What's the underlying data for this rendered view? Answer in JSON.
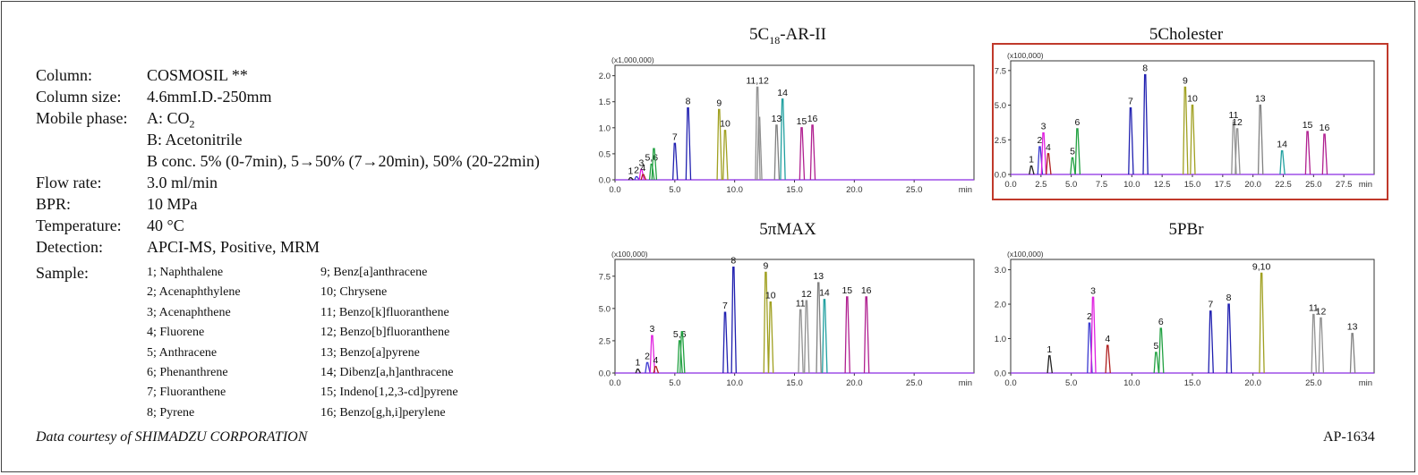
{
  "conditions": [
    {
      "label": "Column:",
      "value": "COSMOSIL  **"
    },
    {
      "label": "Column size:",
      "value": "4.6mmI.D.-250mm"
    },
    {
      "label": "Mobile phase:",
      "value": "A: CO",
      "sub": "2"
    },
    {
      "label": "",
      "value": "B: Acetonitrile"
    },
    {
      "label": "",
      "value": "B conc. 5% (0-7min), 5→50% (7→20min), 50% (20-22min)"
    },
    {
      "label": "Flow rate:",
      "value": "3.0 ml/min"
    },
    {
      "label": "BPR:",
      "value": "10 MPa"
    },
    {
      "label": "Temperature:",
      "value": "40 °C"
    },
    {
      "label": "Detection:",
      "value": "APCI-MS, Positive, MRM"
    }
  ],
  "sample_label": "Sample:",
  "samples": [
    "1; Naphthalene",
    "2; Acenaphthylene",
    "3; Acenaphthene",
    "4; Fluorene",
    "5; Anthracene",
    "6; Phenanthrene",
    "7; Fluoranthene",
    "8; Pyrene",
    "9; Benz[a]anthracene",
    "10; Chrysene",
    "11; Benzo[k]fluoranthene",
    "12; Benzo[b]fluoranthene",
    "13; Benzo[a]pyrene",
    "14; Dibenz[a,h]anthracene",
    "15; Indeno[1,2,3-cd]pyrene",
    "16; Benzo[g,h,i]perylene"
  ],
  "credit": "Data courtesy of SHIMADZU CORPORATION",
  "code": "AP-1634",
  "series_colors": [
    "#222222",
    "#3a3ad0",
    "#e020e0",
    "#b02020",
    "#20a040",
    "#20a040",
    "#2020b0",
    "#2020b0",
    "#a0a020",
    "#a0a020",
    "#909090",
    "#909090",
    "#808080",
    "#20a0a0",
    "#b02090",
    "#b02090"
  ],
  "chart_data": [
    {
      "type": "line",
      "title": "5C18-AR-II",
      "title_main": "5C",
      "title_sub": "18",
      "title_rest": "-AR-II",
      "scale_label": "(x1,000,000)",
      "x_unit": "min",
      "xlim": [
        0,
        30
      ],
      "ylim": [
        0,
        2.2
      ],
      "yticks": [
        "0.0",
        "0.5",
        "1.0",
        "1.5",
        "2.0"
      ],
      "xticks": [
        "0.0",
        "5.0",
        "10.0",
        "15.0",
        "20.0",
        "25.0"
      ],
      "highlighted": false,
      "peaks": [
        {
          "id": 1,
          "rt": 1.3,
          "h": 0.04,
          "label": "1"
        },
        {
          "id": 2,
          "rt": 1.8,
          "h": 0.06,
          "label": "2"
        },
        {
          "id": 3,
          "rt": 2.2,
          "h": 0.2,
          "label": "3"
        },
        {
          "id": 4,
          "rt": 2.35,
          "h": 0.1,
          "label": "4"
        },
        {
          "id": 5,
          "rt": 3.05,
          "h": 0.3,
          "label": "5,6"
        },
        {
          "id": 6,
          "rt": 3.25,
          "h": 0.6,
          "label": ""
        },
        {
          "id": 7,
          "rt": 5.0,
          "h": 0.7,
          "label": "7"
        },
        {
          "id": 8,
          "rt": 6.1,
          "h": 1.38,
          "label": "8"
        },
        {
          "id": 9,
          "rt": 8.7,
          "h": 1.35,
          "label": "9"
        },
        {
          "id": 10,
          "rt": 9.2,
          "h": 0.95,
          "label": "10"
        },
        {
          "id": 11,
          "rt": 11.9,
          "h": 1.78,
          "label": "11,12"
        },
        {
          "id": 12,
          "rt": 12.05,
          "h": 1.2,
          "label": ""
        },
        {
          "id": 13,
          "rt": 13.5,
          "h": 1.05,
          "label": "13"
        },
        {
          "id": 14,
          "rt": 14.0,
          "h": 1.55,
          "label": "14"
        },
        {
          "id": 15,
          "rt": 15.6,
          "h": 1.0,
          "label": "15"
        },
        {
          "id": 16,
          "rt": 16.5,
          "h": 1.05,
          "label": "16"
        }
      ]
    },
    {
      "type": "line",
      "title": "5Cholester",
      "title_main": "5Cholester",
      "title_sub": "",
      "title_rest": "",
      "scale_label": "(x100,000)",
      "x_unit": "min",
      "xlim": [
        0,
        30
      ],
      "ylim": [
        0,
        8.2
      ],
      "yticks": [
        "0.0",
        "2.5",
        "5.0",
        "7.5"
      ],
      "xticks": [
        "0.0",
        "2.5",
        "5.0",
        "7.5",
        "10.0",
        "12.5",
        "15.0",
        "17.5",
        "20.0",
        "22.5",
        "25.0",
        "27.5"
      ],
      "highlighted": true,
      "peaks": [
        {
          "id": 1,
          "rt": 1.7,
          "h": 0.6,
          "label": "1"
        },
        {
          "id": 2,
          "rt": 2.4,
          "h": 2.0,
          "label": "2"
        },
        {
          "id": 3,
          "rt": 2.7,
          "h": 3.0,
          "label": "3"
        },
        {
          "id": 4,
          "rt": 3.1,
          "h": 1.5,
          "label": "4"
        },
        {
          "id": 5,
          "rt": 5.1,
          "h": 1.2,
          "label": "5"
        },
        {
          "id": 6,
          "rt": 5.5,
          "h": 3.3,
          "label": "6"
        },
        {
          "id": 7,
          "rt": 9.9,
          "h": 4.8,
          "label": "7"
        },
        {
          "id": 8,
          "rt": 11.1,
          "h": 7.2,
          "label": "8"
        },
        {
          "id": 9,
          "rt": 14.4,
          "h": 6.3,
          "label": "9"
        },
        {
          "id": 10,
          "rt": 15.0,
          "h": 5.0,
          "label": "10"
        },
        {
          "id": 11,
          "rt": 18.4,
          "h": 3.8,
          "label": "11"
        },
        {
          "id": 12,
          "rt": 18.7,
          "h": 3.3,
          "label": "12"
        },
        {
          "id": 13,
          "rt": 20.6,
          "h": 5.0,
          "label": "13"
        },
        {
          "id": 14,
          "rt": 22.4,
          "h": 1.7,
          "label": "14"
        },
        {
          "id": 15,
          "rt": 24.5,
          "h": 3.1,
          "label": "15"
        },
        {
          "id": 16,
          "rt": 25.9,
          "h": 2.9,
          "label": "16"
        }
      ]
    },
    {
      "type": "line",
      "title": "5πMAX",
      "title_main": "5πMAX",
      "title_sub": "",
      "title_rest": "",
      "scale_label": "(x100,000)",
      "x_unit": "min",
      "xlim": [
        0,
        30
      ],
      "ylim": [
        0,
        8.8
      ],
      "yticks": [
        "0.0",
        "2.5",
        "5.0",
        "7.5"
      ],
      "xticks": [
        "0.0",
        "5.0",
        "10.0",
        "15.0",
        "20.0",
        "25.0"
      ],
      "highlighted": false,
      "peaks": [
        {
          "id": 1,
          "rt": 1.9,
          "h": 0.3,
          "label": "1"
        },
        {
          "id": 2,
          "rt": 2.7,
          "h": 0.8,
          "label": "2"
        },
        {
          "id": 3,
          "rt": 3.1,
          "h": 2.9,
          "label": "3"
        },
        {
          "id": 4,
          "rt": 3.4,
          "h": 0.5,
          "label": "4"
        },
        {
          "id": 5,
          "rt": 5.4,
          "h": 2.5,
          "label": "5,6"
        },
        {
          "id": 6,
          "rt": 5.6,
          "h": 3.2,
          "label": ""
        },
        {
          "id": 7,
          "rt": 9.2,
          "h": 4.7,
          "label": "7"
        },
        {
          "id": 8,
          "rt": 9.9,
          "h": 8.2,
          "label": "8"
        },
        {
          "id": 9,
          "rt": 12.6,
          "h": 7.8,
          "label": "9"
        },
        {
          "id": 10,
          "rt": 13.0,
          "h": 5.5,
          "label": "10"
        },
        {
          "id": 11,
          "rt": 15.5,
          "h": 4.9,
          "label": "11"
        },
        {
          "id": 12,
          "rt": 16.0,
          "h": 5.6,
          "label": "12"
        },
        {
          "id": 13,
          "rt": 17.0,
          "h": 7.0,
          "label": "13"
        },
        {
          "id": 14,
          "rt": 17.5,
          "h": 5.7,
          "label": "14"
        },
        {
          "id": 15,
          "rt": 19.4,
          "h": 5.9,
          "label": "15"
        },
        {
          "id": 16,
          "rt": 21.0,
          "h": 5.9,
          "label": "16"
        }
      ]
    },
    {
      "type": "line",
      "title": "5PBr",
      "title_main": "5PBr",
      "title_sub": "",
      "title_rest": "",
      "scale_label": "(x100,000)",
      "x_unit": "min",
      "xlim": [
        0,
        30
      ],
      "ylim": [
        0,
        3.3
      ],
      "yticks": [
        "0.0",
        "1.0",
        "2.0",
        "3.0"
      ],
      "xticks": [
        "0.0",
        "5.0",
        "10.0",
        "15.0",
        "20.0",
        "25.0"
      ],
      "highlighted": false,
      "peaks": [
        {
          "id": 1,
          "rt": 3.2,
          "h": 0.5,
          "label": "1"
        },
        {
          "id": 2,
          "rt": 6.5,
          "h": 1.45,
          "label": "2"
        },
        {
          "id": 3,
          "rt": 6.8,
          "h": 2.2,
          "label": "3"
        },
        {
          "id": 4,
          "rt": 8.0,
          "h": 0.8,
          "label": "4"
        },
        {
          "id": 5,
          "rt": 12.0,
          "h": 0.6,
          "label": "5"
        },
        {
          "id": 6,
          "rt": 12.4,
          "h": 1.3,
          "label": "6"
        },
        {
          "id": 7,
          "rt": 16.5,
          "h": 1.8,
          "label": "7"
        },
        {
          "id": 8,
          "rt": 18.0,
          "h": 2.0,
          "label": "8"
        },
        {
          "id": 9,
          "rt": 20.7,
          "h": 2.9,
          "label": "9,10"
        },
        {
          "id": 11,
          "rt": 25.0,
          "h": 1.7,
          "label": "11"
        },
        {
          "id": 12,
          "rt": 25.6,
          "h": 1.6,
          "label": "12"
        },
        {
          "id": 13,
          "rt": 28.2,
          "h": 1.15,
          "label": "13"
        }
      ]
    }
  ]
}
